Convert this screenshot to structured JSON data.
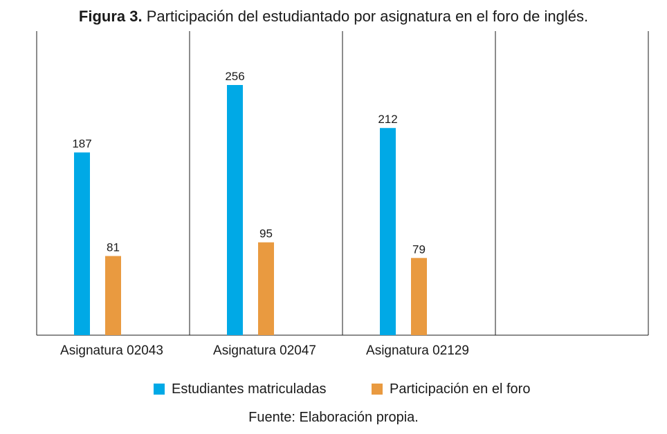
{
  "title": {
    "prefix": "Figura 3.",
    "text": " Participación del estudiantado por asignatura en el foro de inglés."
  },
  "source": "Fuente: Elaboración propia.",
  "colors": {
    "series_0": "#00a9e6",
    "series_1": "#e99a40",
    "axis": "#1a1a1a"
  },
  "chart_data": {
    "type": "bar",
    "categories": [
      "Asignatura 02043",
      "Asignatura 02047",
      "Asignatura 02129",
      ""
    ],
    "series": [
      {
        "name": "Estudiantes matriculadas",
        "values": [
          187,
          256,
          212,
          null
        ]
      },
      {
        "name": "Participación en el foro",
        "values": [
          81,
          95,
          79,
          null
        ]
      }
    ],
    "ylim": [
      0,
      300
    ],
    "grid": false,
    "legend": "bottom"
  }
}
